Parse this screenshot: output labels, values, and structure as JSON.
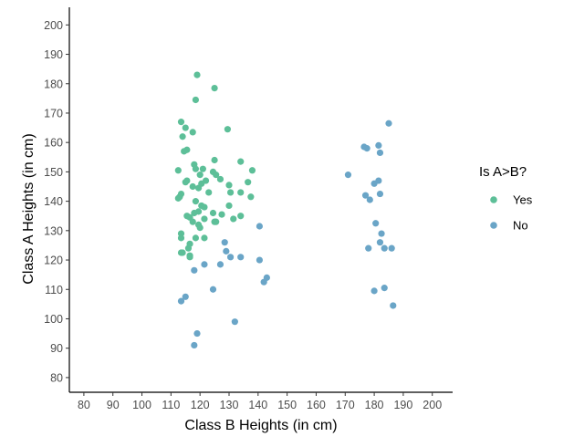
{
  "chart_data": {
    "type": "scatter",
    "title": "",
    "xlabel": "Class B Heights (in cm)",
    "ylabel": "Class A Heights (in cm)",
    "xlim": [
      75,
      207
    ],
    "ylim": [
      75,
      206
    ],
    "xticks": [
      80,
      90,
      100,
      110,
      120,
      130,
      140,
      150,
      160,
      170,
      180,
      190,
      200
    ],
    "yticks": [
      80,
      90,
      100,
      110,
      120,
      130,
      140,
      150,
      160,
      170,
      180,
      190,
      200
    ],
    "grid": false,
    "legend": {
      "title": "Is A>B?",
      "position": "right"
    },
    "series": [
      {
        "name": "Yes",
        "color": "#5dbf98",
        "points": [
          [
            119,
            183
          ],
          [
            125,
            178.5
          ],
          [
            118.5,
            174.5
          ],
          [
            113.5,
            167
          ],
          [
            129.5,
            164.5
          ],
          [
            115,
            165
          ],
          [
            117.5,
            163.5
          ],
          [
            114,
            162
          ],
          [
            115.5,
            157.5
          ],
          [
            114.5,
            157
          ],
          [
            134,
            153.5
          ],
          [
            125,
            154
          ],
          [
            118,
            152.5
          ],
          [
            121,
            151
          ],
          [
            118.5,
            151
          ],
          [
            112.5,
            150.5
          ],
          [
            138,
            150.5
          ],
          [
            124.5,
            150
          ],
          [
            125.5,
            149
          ],
          [
            120,
            149
          ],
          [
            122,
            147
          ],
          [
            127,
            147.5
          ],
          [
            115.5,
            147
          ],
          [
            115,
            146.5
          ],
          [
            136.5,
            146.5
          ],
          [
            120.5,
            146
          ],
          [
            130,
            145.5
          ],
          [
            117.5,
            145
          ],
          [
            119.5,
            144.5
          ],
          [
            123,
            143
          ],
          [
            134,
            143
          ],
          [
            130.5,
            143
          ],
          [
            113.5,
            142.5
          ],
          [
            113,
            141.5
          ],
          [
            137.5,
            141.5
          ],
          [
            112.5,
            141
          ],
          [
            118.5,
            140
          ],
          [
            120.5,
            138.5
          ],
          [
            121.5,
            138
          ],
          [
            130,
            138.5
          ],
          [
            119.5,
            136.5
          ],
          [
            118,
            136
          ],
          [
            124.5,
            136
          ],
          [
            127.5,
            135.5
          ],
          [
            115.5,
            135
          ],
          [
            134,
            135
          ],
          [
            131.5,
            134
          ],
          [
            116.5,
            134.5
          ],
          [
            121.5,
            134
          ],
          [
            125,
            133
          ],
          [
            117.5,
            133
          ],
          [
            125.5,
            133
          ],
          [
            119.5,
            132
          ],
          [
            120,
            131
          ],
          [
            113.5,
            129
          ],
          [
            113.5,
            127.5
          ],
          [
            118.5,
            127.5
          ],
          [
            121.5,
            127.5
          ],
          [
            116.5,
            125.5
          ],
          [
            116,
            124
          ],
          [
            113.5,
            122.5
          ],
          [
            114,
            122.5
          ],
          [
            116.5,
            121.5
          ],
          [
            116.5,
            121
          ]
        ]
      },
      {
        "name": "No",
        "color": "#6aa5c7",
        "points": [
          [
            140.5,
            131.5
          ],
          [
            128.5,
            126
          ],
          [
            129,
            123
          ],
          [
            134,
            121
          ],
          [
            130.5,
            121
          ],
          [
            140.5,
            120
          ],
          [
            121.5,
            118.5
          ],
          [
            127,
            118.5
          ],
          [
            118,
            116.5
          ],
          [
            143,
            114
          ],
          [
            142,
            112.5
          ],
          [
            124.5,
            110
          ],
          [
            115,
            107.5
          ],
          [
            113.5,
            106
          ],
          [
            132,
            99
          ],
          [
            119,
            95
          ],
          [
            118,
            91
          ],
          [
            185,
            166.5
          ],
          [
            181.5,
            159
          ],
          [
            176.5,
            158.5
          ],
          [
            177.5,
            158
          ],
          [
            182,
            156.5
          ],
          [
            171,
            149
          ],
          [
            181.5,
            147
          ],
          [
            180,
            146
          ],
          [
            182,
            142.5
          ],
          [
            177,
            142
          ],
          [
            178.5,
            140.5
          ],
          [
            180.5,
            132.5
          ],
          [
            182.5,
            129
          ],
          [
            182,
            126
          ],
          [
            183.5,
            124
          ],
          [
            186,
            124
          ],
          [
            178,
            124
          ],
          [
            183.5,
            110.5
          ],
          [
            180,
            109.5
          ],
          [
            186.5,
            104.5
          ]
        ]
      }
    ]
  }
}
